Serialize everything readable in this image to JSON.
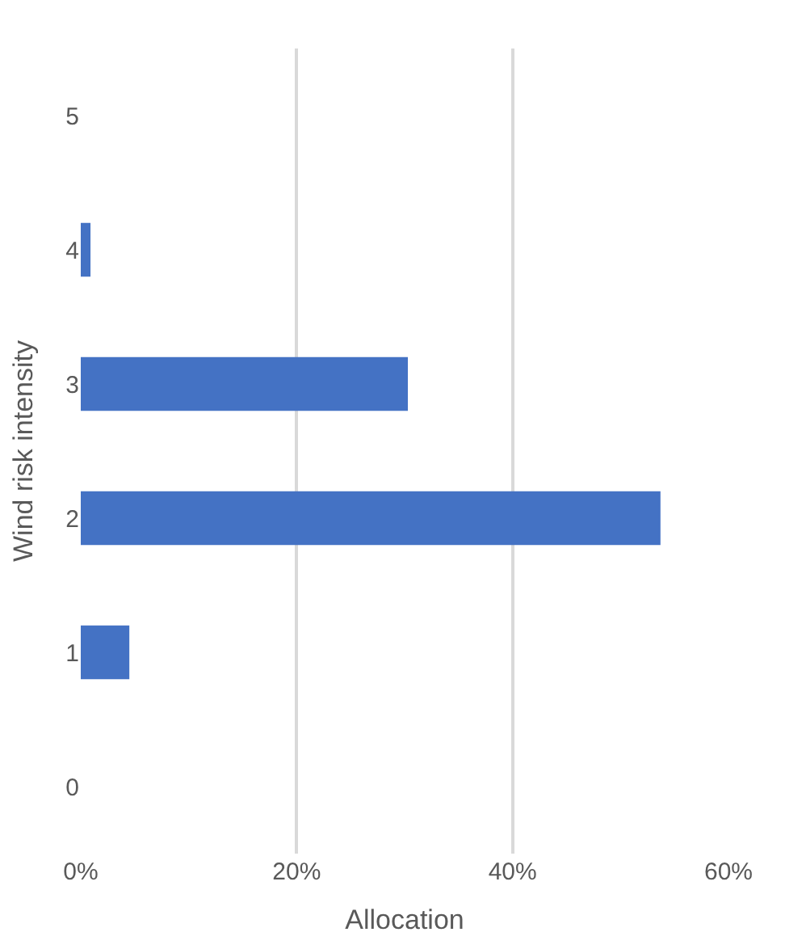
{
  "chart_data": {
    "type": "bar",
    "orientation": "horizontal",
    "xlabel": "Allocation",
    "ylabel": "Wind risk intensity",
    "categories": [
      "5",
      "4",
      "3",
      "2",
      "1",
      "0"
    ],
    "values": [
      0,
      0.9,
      30.3,
      53.7,
      4.5,
      0
    ],
    "color": "#4472c4",
    "xlim": [
      0,
      60
    ],
    "xticks": [
      {
        "value": 0,
        "label": "0%"
      },
      {
        "value": 20,
        "label": "20%"
      },
      {
        "value": 40,
        "label": "40%"
      },
      {
        "value": 60,
        "label": "60%"
      }
    ],
    "grid": "x",
    "legend": false
  }
}
